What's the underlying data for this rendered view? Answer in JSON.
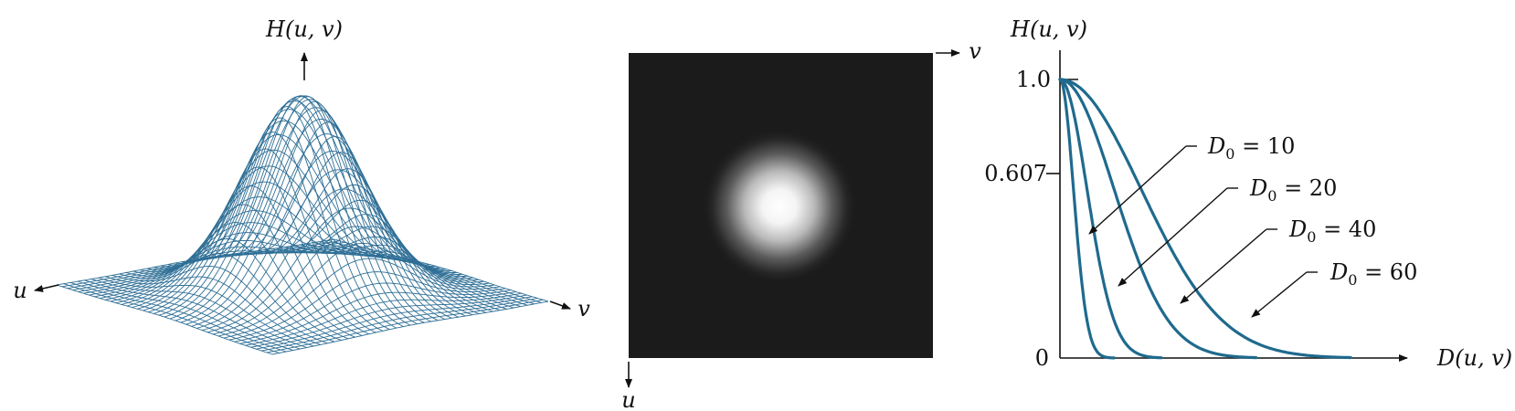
{
  "colors": {
    "mesh": "#2f6f96",
    "curve": "#1f6a8d",
    "image_bg": "#1b1b1b",
    "text": "#111111"
  },
  "panel_mesh": {
    "axis_label_top": "H(u, v)",
    "axis_label_u": "u",
    "axis_label_v": "v"
  },
  "panel_image": {
    "axis_label_v": "v",
    "axis_label_u": "u"
  },
  "panel_profile": {
    "y_label": "H(u, v)",
    "x_label": "D(u, v)",
    "y_ticks": [
      "1.0",
      "0.607",
      "0"
    ],
    "curves": [
      {
        "d0": 10,
        "label_d": "D",
        "label_sub": "0",
        "label_rest": " = 10"
      },
      {
        "d0": 20,
        "label_d": "D",
        "label_sub": "0",
        "label_rest": " = 20"
      },
      {
        "d0": 40,
        "label_d": "D",
        "label_sub": "0",
        "label_rest": " = 40"
      },
      {
        "d0": 60,
        "label_d": "D",
        "label_sub": "0",
        "label_rest": " = 60"
      }
    ]
  }
}
